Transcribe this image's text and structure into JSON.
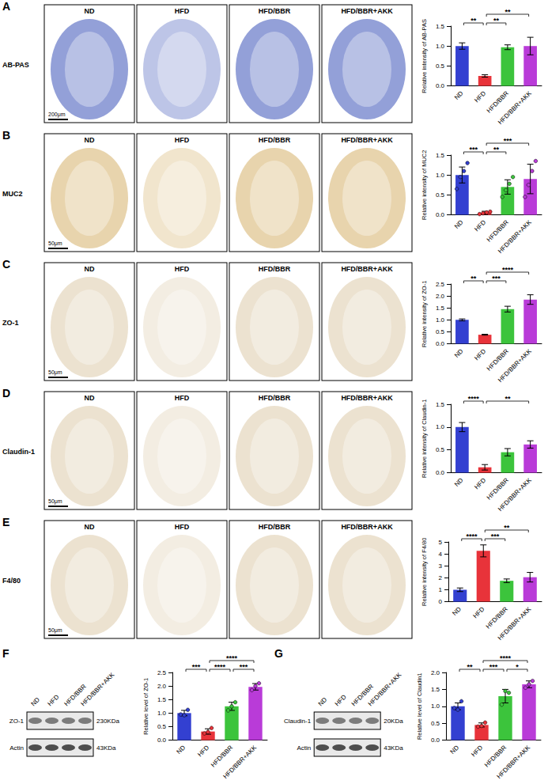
{
  "figure": {
    "groups": [
      "ND",
      "HFD",
      "HFD/BBR",
      "HFD/BBR+AKK"
    ],
    "image_rows": [
      {
        "letter": "A",
        "label": "AB-PAS",
        "scale_bar": "200μm"
      },
      {
        "letter": "B",
        "label": "MUC2",
        "scale_bar": "50μm"
      },
      {
        "letter": "C",
        "label": "ZO-1",
        "scale_bar": "50μm"
      },
      {
        "letter": "D",
        "label": "Claudin-1",
        "scale_bar": "50μm"
      },
      {
        "letter": "E",
        "label": "F4/80",
        "scale_bar": "50μm"
      }
    ],
    "blots": [
      {
        "letter": "F",
        "bands": [
          {
            "label": "ZO-1",
            "size": "230KDa"
          },
          {
            "label": "Actin",
            "size": "43KDa"
          }
        ]
      },
      {
        "letter": "G",
        "bands": [
          {
            "label": "Claudin-1",
            "size": "20KDa"
          },
          {
            "label": "Actin",
            "size": "43KDa"
          }
        ]
      }
    ]
  },
  "chart_data": [
    {
      "type": "bar",
      "ylabel": "Relative intensity of AB-PAS",
      "categories": [
        "ND",
        "HFD",
        "HFD/BBR",
        "HFD/BBR+AKK"
      ],
      "values": [
        1.0,
        0.25,
        0.97,
        1.0
      ],
      "errors": [
        0.08,
        0.03,
        0.06,
        0.22
      ],
      "colors": [
        "#3340d1",
        "#e8333a",
        "#3cc43c",
        "#b93bd8"
      ],
      "ylim": [
        0,
        1.5
      ],
      "yticks": [
        {
          "value": 0,
          "label": "0.0"
        },
        {
          "value": 0.5,
          "label": "0.5"
        },
        {
          "value": 1,
          "label": "1.0"
        },
        {
          "value": 1.5,
          "label": "1.5"
        }
      ],
      "annotations": [
        {
          "from": "ND",
          "to": "HFD",
          "text": "**"
        },
        {
          "from": "HFD",
          "to": "HFD/BBR",
          "text": "**"
        },
        {
          "from": "HFD",
          "to": "HFD/BBR+AKK",
          "text": "**"
        }
      ]
    },
    {
      "type": "bar",
      "ylabel": "Relative intensity of MUC2",
      "categories": [
        "ND",
        "HFD",
        "HFD/BBR",
        "HFD/BBR+AKK"
      ],
      "values": [
        1.0,
        0.05,
        0.7,
        0.9
      ],
      "errors": [
        0.2,
        0.04,
        0.18,
        0.37
      ],
      "points": [
        [
          0.65,
          0.95,
          1.1,
          1.3
        ],
        [
          0.02,
          0.04,
          0.06,
          0.08
        ],
        [
          0.45,
          0.62,
          0.78,
          0.95
        ],
        [
          0.45,
          0.75,
          1.1,
          1.35
        ]
      ],
      "colors": [
        "#3340d1",
        "#e8333a",
        "#3cc43c",
        "#b93bd8"
      ],
      "ylim": [
        0,
        1.5
      ],
      "yticks": [
        {
          "value": 0,
          "label": "0.0"
        },
        {
          "value": 0.5,
          "label": "0.5"
        },
        {
          "value": 1,
          "label": "1.0"
        },
        {
          "value": 1.5,
          "label": "1.5"
        }
      ],
      "annotations": [
        {
          "from": "ND",
          "to": "HFD",
          "text": "***"
        },
        {
          "from": "HFD",
          "to": "HFD/BBR",
          "text": "**"
        },
        {
          "from": "HFD",
          "to": "HFD/BBR+AKK",
          "text": "***"
        }
      ]
    },
    {
      "type": "bar",
      "ylabel": "Relative intensity of ZO-1",
      "categories": [
        "ND",
        "HFD",
        "HFD/BBR",
        "HFD/BBR+AKK"
      ],
      "values": [
        1.0,
        0.38,
        1.45,
        1.85
      ],
      "errors": [
        0.04,
        0.02,
        0.12,
        0.2
      ],
      "colors": [
        "#3340d1",
        "#e8333a",
        "#3cc43c",
        "#b93bd8"
      ],
      "ylim": [
        0,
        2.5
      ],
      "yticks": [
        {
          "value": 0,
          "label": "0.0"
        },
        {
          "value": 0.5,
          "label": "0.5"
        },
        {
          "value": 1,
          "label": "1.0"
        },
        {
          "value": 1.5,
          "label": "1.5"
        },
        {
          "value": 2,
          "label": "2.0"
        },
        {
          "value": 2.5,
          "label": "2.5"
        }
      ],
      "annotations": [
        {
          "from": "ND",
          "to": "HFD",
          "text": "**"
        },
        {
          "from": "HFD",
          "to": "HFD/BBR",
          "text": "***"
        },
        {
          "from": "HFD",
          "to": "HFD/BBR+AKK",
          "text": "****"
        }
      ]
    },
    {
      "type": "bar",
      "ylabel": "Relative intensity of Claudin-1",
      "categories": [
        "ND",
        "HFD",
        "HFD/BBR",
        "HFD/BBR+AKK"
      ],
      "values": [
        1.0,
        0.12,
        0.45,
        0.62
      ],
      "errors": [
        0.1,
        0.06,
        0.08,
        0.08
      ],
      "colors": [
        "#3340d1",
        "#e8333a",
        "#3cc43c",
        "#b93bd8"
      ],
      "ylim": [
        0,
        1.5
      ],
      "yticks": [
        {
          "value": 0,
          "label": "0.0"
        },
        {
          "value": 0.5,
          "label": "0.5"
        },
        {
          "value": 1,
          "label": "1.0"
        },
        {
          "value": 1.5,
          "label": "1.5"
        }
      ],
      "annotations": [
        {
          "from": "ND",
          "to": "HFD",
          "text": "****"
        },
        {
          "from": "HFD",
          "to": "HFD/BBR+AKK",
          "text": "**"
        }
      ]
    },
    {
      "type": "bar",
      "ylabel": "Relative intensity of F4/80",
      "categories": [
        "ND",
        "HFD",
        "HFD/BBR",
        "HFD/BBR+AKK"
      ],
      "values": [
        1.0,
        4.25,
        1.75,
        2.05
      ],
      "errors": [
        0.15,
        0.5,
        0.15,
        0.4
      ],
      "colors": [
        "#3340d1",
        "#e8333a",
        "#3cc43c",
        "#b93bd8"
      ],
      "ylim": [
        0,
        5
      ],
      "yticks": [
        0,
        1,
        2,
        3,
        4,
        5
      ],
      "annotations": [
        {
          "from": "ND",
          "to": "HFD",
          "text": "****"
        },
        {
          "from": "HFD",
          "to": "HFD/BBR",
          "text": "***"
        },
        {
          "from": "HFD",
          "to": "HFD/BBR+AKK",
          "text": "**"
        }
      ]
    },
    {
      "type": "bar",
      "ylabel": "Relative level of ZO-1",
      "categories": [
        "ND",
        "HFD",
        "HFD/BBR",
        "HFD/BBR+AKK"
      ],
      "values": [
        1.0,
        0.32,
        1.25,
        1.97
      ],
      "errors": [
        0.1,
        0.1,
        0.15,
        0.12
      ],
      "points": [
        [
          0.95,
          0.92,
          1.12
        ],
        [
          0.25,
          0.3,
          0.45
        ],
        [
          1.1,
          1.25,
          1.4
        ],
        [
          1.85,
          2.0,
          2.1
        ]
      ],
      "colors": [
        "#3340d1",
        "#e8333a",
        "#3cc43c",
        "#b93bd8"
      ],
      "ylim": [
        0,
        2.5
      ],
      "yticks": [
        {
          "value": 0,
          "label": "0.0"
        },
        {
          "value": 0.5,
          "label": "0.5"
        },
        {
          "value": 1,
          "label": "1.0"
        },
        {
          "value": 1.5,
          "label": "1.5"
        },
        {
          "value": 2,
          "label": "2.0"
        },
        {
          "value": 2.5,
          "label": "2.5"
        }
      ],
      "annotations": [
        {
          "from": "ND",
          "to": "HFD",
          "text": "***"
        },
        {
          "from": "HFD",
          "to": "HFD/BBR",
          "text": "****"
        },
        {
          "from": "HFD/BBR",
          "to": "HFD/BBR+AKK",
          "text": "***"
        },
        {
          "from": "HFD",
          "to": "HFD/BBR+AKK",
          "text": "****"
        }
      ]
    },
    {
      "type": "bar",
      "ylabel": "Relative level of Claudin1",
      "categories": [
        "ND",
        "HFD",
        "HFD/BBR",
        "HFD/BBR+AKK"
      ],
      "values": [
        1.0,
        0.45,
        1.3,
        1.65
      ],
      "errors": [
        0.1,
        0.06,
        0.2,
        0.1
      ],
      "points": [
        [
          0.95,
          0.9,
          1.15
        ],
        [
          0.4,
          0.42,
          0.52
        ],
        [
          1.05,
          1.45,
          1.4
        ],
        [
          1.55,
          1.65,
          1.75
        ]
      ],
      "colors": [
        "#3340d1",
        "#e8333a",
        "#3cc43c",
        "#b93bd8"
      ],
      "ylim": [
        0,
        2
      ],
      "yticks": [
        {
          "value": 0,
          "label": "0.0"
        },
        {
          "value": 0.5,
          "label": "0.5"
        },
        {
          "value": 1,
          "label": "1.0"
        },
        {
          "value": 1.5,
          "label": "1.5"
        },
        {
          "value": 2,
          "label": "2.0"
        }
      ],
      "annotations": [
        {
          "from": "ND",
          "to": "HFD",
          "text": "**"
        },
        {
          "from": "HFD",
          "to": "HFD/BBR",
          "text": "***"
        },
        {
          "from": "HFD/BBR",
          "to": "HFD/BBR+AKK",
          "text": "*"
        },
        {
          "from": "HFD",
          "to": "HFD/BBR+AKK",
          "text": "****"
        }
      ]
    }
  ]
}
